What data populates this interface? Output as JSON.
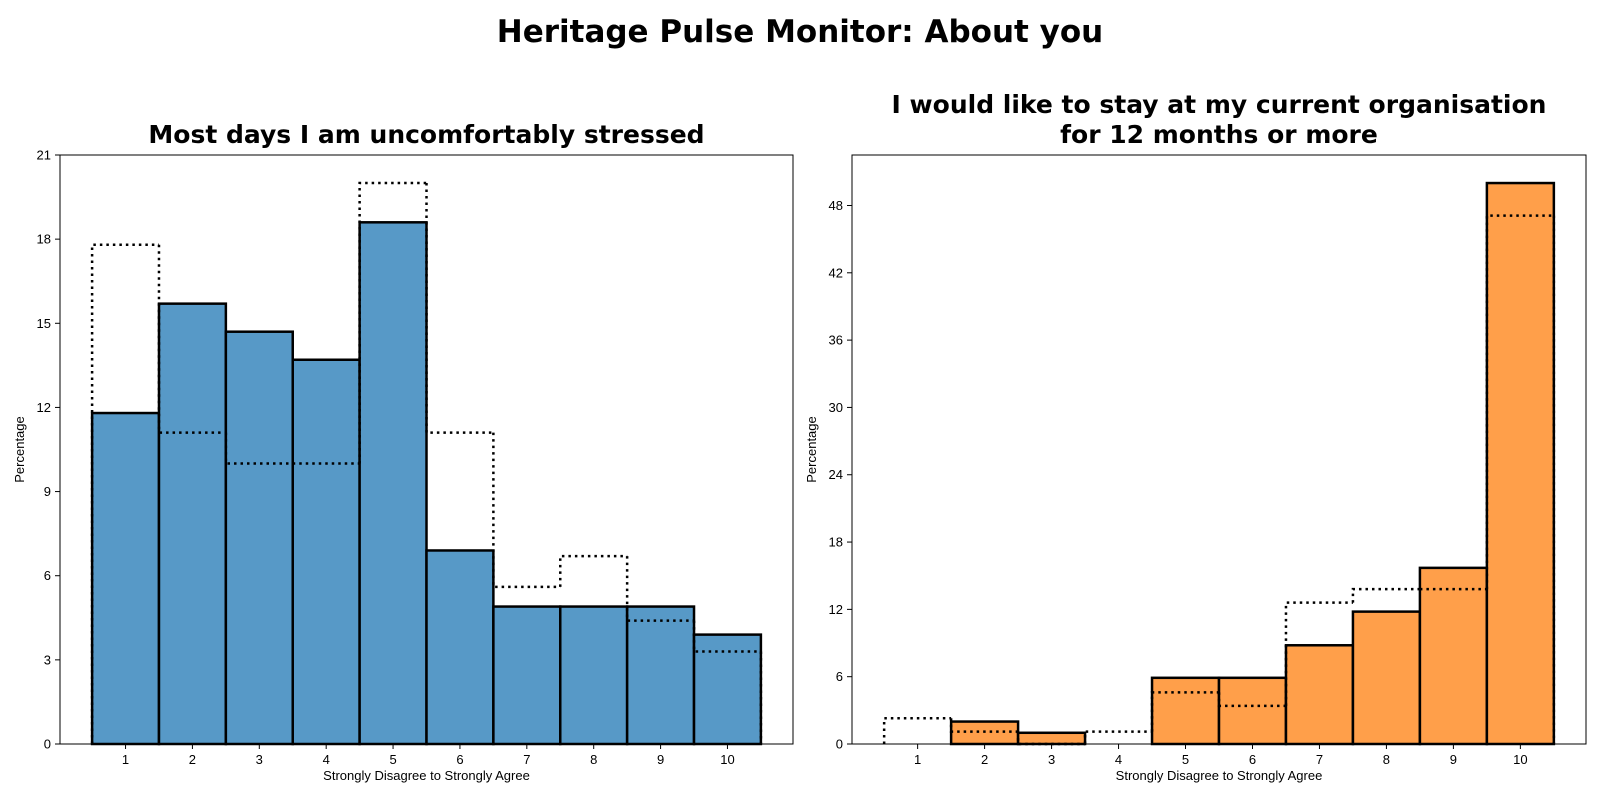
{
  "figure": {
    "title": "Heritage Pulse Monitor: About you"
  },
  "chart_data": [
    {
      "type": "bar",
      "title": "Most days I am uncomfortably stressed",
      "xlabel": "Strongly Disagree to Strongly Agree",
      "ylabel": "Percentage",
      "categories": [
        "1",
        "2",
        "3",
        "4",
        "5",
        "6",
        "7",
        "8",
        "9",
        "10"
      ],
      "series": [
        {
          "values": [
            11.8,
            15.7,
            14.7,
            13.7,
            18.6,
            6.9,
            4.9,
            4.9,
            4.9,
            3.9
          ],
          "color": "#5799C7",
          "style": "filled"
        },
        {
          "values": [
            17.8,
            11.1,
            10.0,
            10.0,
            20.0,
            11.1,
            5.6,
            6.7,
            4.4,
            3.3
          ],
          "style": "dotted-outline"
        }
      ],
      "ylim": [
        0,
        21
      ],
      "yticks": [
        0,
        3,
        6,
        9,
        12,
        15,
        18,
        21
      ],
      "grid": false
    },
    {
      "type": "bar",
      "title": "I would like to stay at my current organisation for 12 months or more",
      "title_lines": [
        "I would like to stay at my current organisation",
        "for 12 months or more"
      ],
      "xlabel": "Strongly Disagree to Strongly Agree",
      "ylabel": "Percentage",
      "categories": [
        "1",
        "2",
        "3",
        "4",
        "5",
        "6",
        "7",
        "8",
        "9",
        "10"
      ],
      "series": [
        {
          "values": [
            0,
            2.0,
            1.0,
            0,
            5.9,
            5.9,
            8.8,
            11.8,
            15.7,
            50.0
          ],
          "color": "#FF9F4A",
          "style": "filled"
        },
        {
          "values": [
            2.3,
            1.1,
            0,
            1.1,
            4.6,
            3.4,
            12.6,
            13.8,
            13.8,
            47.1
          ],
          "style": "dotted-outline"
        }
      ],
      "ylim": [
        0,
        52.5
      ],
      "yticks": [
        0,
        6,
        12,
        18,
        24,
        30,
        36,
        42,
        48
      ],
      "grid": false
    }
  ]
}
